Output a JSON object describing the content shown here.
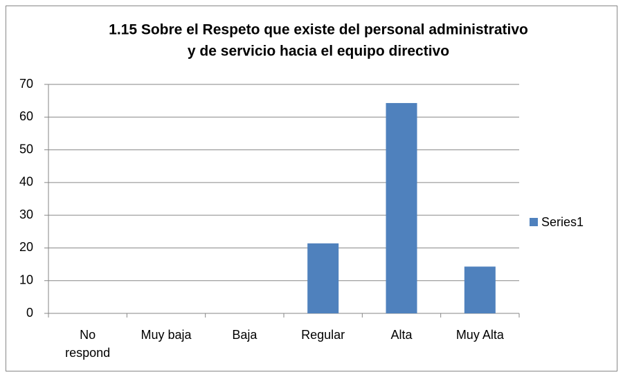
{
  "chart_data": {
    "type": "bar",
    "title": [
      "1.15 Sobre el Respeto que existe del personal administrativo",
      "y de servicio hacia el equipo directivo"
    ],
    "categories": [
      "No respond",
      "Muy baja",
      "Baja",
      "Regular",
      "Alta",
      "Muy Alta"
    ],
    "series": [
      {
        "name": "Series1",
        "color": "#4f81bd",
        "values": [
          0,
          0,
          0,
          21.4,
          64.3,
          14.3
        ]
      }
    ],
    "ylim": [
      0,
      70
    ],
    "yticks": [
      0,
      10,
      20,
      30,
      40,
      50,
      60,
      70
    ],
    "grid": true,
    "legend": "right"
  }
}
